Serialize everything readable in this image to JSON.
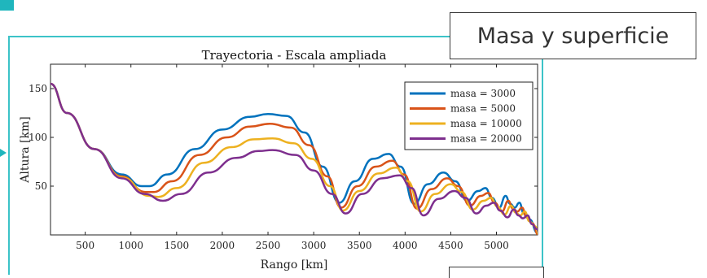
{
  "slide": {
    "box_title": "Masa y superficie",
    "accent_color": "#1fb6bd"
  },
  "chart_data": {
    "type": "line",
    "title": "Trayectoria - Escala ampliada",
    "xlabel": "Rango [km]",
    "ylabel": "Altura [km]",
    "xlim": [
      120,
      5450
    ],
    "ylim": [
      0,
      175
    ],
    "xticks": [
      500,
      1000,
      1500,
      2000,
      2500,
      3000,
      3500,
      4000,
      4500,
      5000
    ],
    "yticks": [
      50,
      100,
      150
    ],
    "legend_position": "top-right",
    "series": [
      {
        "name": "masa = 3000",
        "color": "#0072bd",
        "points": [
          [
            120,
            155
          ],
          [
            300,
            125
          ],
          [
            600,
            88
          ],
          [
            900,
            62
          ],
          [
            1120,
            50
          ],
          [
            1200,
            50
          ],
          [
            1400,
            62
          ],
          [
            1700,
            88
          ],
          [
            2000,
            108
          ],
          [
            2300,
            121
          ],
          [
            2500,
            124
          ],
          [
            2700,
            122
          ],
          [
            2900,
            105
          ],
          [
            3100,
            70
          ],
          [
            3280,
            33
          ],
          [
            3450,
            55
          ],
          [
            3650,
            78
          ],
          [
            3820,
            83
          ],
          [
            3950,
            70
          ],
          [
            4100,
            32
          ],
          [
            4250,
            52
          ],
          [
            4420,
            64
          ],
          [
            4550,
            55
          ],
          [
            4680,
            35
          ],
          [
            4800,
            45
          ],
          [
            4880,
            48
          ],
          [
            4950,
            38
          ],
          [
            5030,
            28
          ],
          [
            5100,
            40
          ],
          [
            5150,
            32
          ],
          [
            5200,
            28
          ],
          [
            5250,
            33
          ],
          [
            5300,
            22
          ],
          [
            5360,
            16
          ],
          [
            5450,
            2
          ]
        ]
      },
      {
        "name": "masa = 5000",
        "color": "#d95319",
        "points": [
          [
            120,
            155
          ],
          [
            300,
            125
          ],
          [
            600,
            88
          ],
          [
            900,
            60
          ],
          [
            1160,
            44
          ],
          [
            1250,
            44
          ],
          [
            1450,
            55
          ],
          [
            1750,
            82
          ],
          [
            2050,
            100
          ],
          [
            2300,
            111
          ],
          [
            2520,
            114
          ],
          [
            2750,
            110
          ],
          [
            2950,
            92
          ],
          [
            3150,
            60
          ],
          [
            3300,
            28
          ],
          [
            3480,
            50
          ],
          [
            3680,
            70
          ],
          [
            3860,
            76
          ],
          [
            3990,
            62
          ],
          [
            4130,
            27
          ],
          [
            4290,
            47
          ],
          [
            4460,
            58
          ],
          [
            4580,
            50
          ],
          [
            4710,
            30
          ],
          [
            4830,
            40
          ],
          [
            4910,
            43
          ],
          [
            4980,
            33
          ],
          [
            5060,
            24
          ],
          [
            5130,
            35
          ],
          [
            5180,
            27
          ],
          [
            5230,
            24
          ],
          [
            5280,
            28
          ],
          [
            5330,
            18
          ],
          [
            5390,
            12
          ],
          [
            5460,
            0
          ]
        ]
      },
      {
        "name": "masa = 10000",
        "color": "#edb120",
        "points": [
          [
            120,
            155
          ],
          [
            300,
            125
          ],
          [
            600,
            88
          ],
          [
            900,
            59
          ],
          [
            1200,
            40
          ],
          [
            1300,
            39
          ],
          [
            1500,
            48
          ],
          [
            1800,
            74
          ],
          [
            2100,
            90
          ],
          [
            2350,
            98
          ],
          [
            2550,
            99
          ],
          [
            2780,
            94
          ],
          [
            2980,
            78
          ],
          [
            3180,
            50
          ],
          [
            3320,
            25
          ],
          [
            3500,
            45
          ],
          [
            3710,
            63
          ],
          [
            3900,
            69
          ],
          [
            4030,
            55
          ],
          [
            4170,
            24
          ],
          [
            4330,
            42
          ],
          [
            4500,
            52
          ],
          [
            4620,
            44
          ],
          [
            4740,
            26
          ],
          [
            4860,
            35
          ],
          [
            4940,
            38
          ],
          [
            5010,
            29
          ],
          [
            5090,
            21
          ],
          [
            5160,
            30
          ],
          [
            5210,
            23
          ],
          [
            5260,
            20
          ],
          [
            5310,
            24
          ],
          [
            5360,
            14
          ],
          [
            5420,
            9
          ],
          [
            5470,
            0
          ]
        ]
      },
      {
        "name": "masa = 20000",
        "color": "#7e2f8e",
        "points": [
          [
            120,
            155
          ],
          [
            300,
            125
          ],
          [
            600,
            88
          ],
          [
            900,
            58
          ],
          [
            1150,
            42
          ],
          [
            1350,
            35
          ],
          [
            1550,
            42
          ],
          [
            1850,
            64
          ],
          [
            2150,
            79
          ],
          [
            2400,
            86
          ],
          [
            2550,
            87
          ],
          [
            2800,
            82
          ],
          [
            3000,
            66
          ],
          [
            3200,
            42
          ],
          [
            3350,
            22
          ],
          [
            3530,
            42
          ],
          [
            3750,
            58
          ],
          [
            3940,
            61
          ],
          [
            4070,
            48
          ],
          [
            4200,
            20
          ],
          [
            4370,
            37
          ],
          [
            4540,
            45
          ],
          [
            4660,
            38
          ],
          [
            4780,
            22
          ],
          [
            4890,
            30
          ],
          [
            4970,
            33
          ],
          [
            5040,
            25
          ],
          [
            5120,
            18
          ],
          [
            5190,
            26
          ],
          [
            5240,
            20
          ],
          [
            5290,
            17
          ],
          [
            5340,
            20
          ],
          [
            5390,
            11
          ],
          [
            5440,
            6
          ],
          [
            5480,
            0
          ]
        ]
      }
    ]
  }
}
